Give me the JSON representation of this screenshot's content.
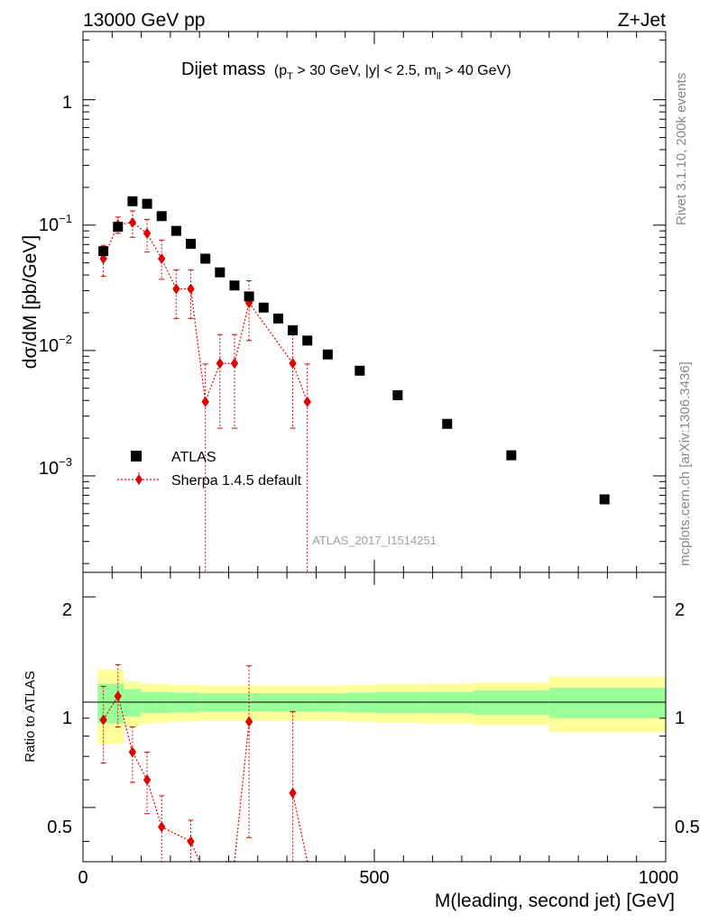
{
  "header": {
    "left_label": "13000 GeV pp",
    "right_label": "Z+Jet"
  },
  "side_labels": {
    "rivet": "Rivet 3.1.10,  200k events",
    "source": "mcplots.cern.ch [arXiv:1306.3436]"
  },
  "title": {
    "main": "Dijet mass",
    "cut_prefix": "(p",
    "cut_pt_sub": "T",
    "cut_mid": " > 30 GeV, |y| < 2.5, m",
    "cut_ll_sub": "ll",
    "cut_suffix": " > 40 GeV)"
  },
  "analysis_id": "ATLAS_2017_I1514251",
  "legend": {
    "data_label": "ATLAS",
    "mc_label": "Sherpa 1.4.5 default"
  },
  "axes": {
    "ylabel_main": "dσ/dM [pb/GeV]",
    "ylabel_ratio": "Ratio to ATLAS",
    "xlabel": "M(leading, second jet) [GeV]",
    "x_ticks": [
      "0",
      "500",
      "1000"
    ],
    "main_y_ticks": [
      {
        "mant": "10",
        "exp": "−3"
      },
      {
        "mant": "10",
        "exp": "−2"
      },
      {
        "mant": "10",
        "exp": "−1"
      },
      {
        "mant": "1",
        "exp": ""
      }
    ],
    "ratio_y_ticks": [
      "0.5",
      "1",
      "2"
    ]
  },
  "colors": {
    "data": "#000000",
    "mc": "#e00000",
    "band_inner": "#99ff99",
    "band_outer": "#ffff99"
  },
  "chart_data": [
    {
      "type": "scatter",
      "panel": "main",
      "title": "Dijet mass",
      "xlabel": "M(leading, second jet) [GeV]",
      "ylabel": "dσ/dM [pb/GeV]",
      "xlim": [
        0,
        1000
      ],
      "ylim": [
        0.00017,
        3.5
      ],
      "yscale": "log",
      "series": [
        {
          "name": "ATLAS",
          "x": [
            35,
            60,
            85,
            110,
            135,
            160,
            185,
            210,
            235,
            260,
            285,
            310,
            335,
            360,
            385,
            420,
            475,
            540,
            625,
            735,
            895
          ],
          "y": [
            0.062,
            0.097,
            0.155,
            0.148,
            0.118,
            0.09,
            0.071,
            0.054,
            0.042,
            0.033,
            0.027,
            0.022,
            0.018,
            0.0145,
            0.012,
            0.0093,
            0.0069,
            0.0044,
            0.0026,
            0.00146,
            0.00065
          ]
        },
        {
          "name": "Sherpa 1.4.5 default",
          "x": [
            35,
            60,
            85,
            110,
            135,
            160,
            185,
            210,
            235,
            260,
            285,
            360,
            385
          ],
          "y": [
            0.054,
            0.101,
            0.105,
            0.086,
            0.054,
            0.031,
            0.031,
            0.0039,
            0.0079,
            0.0079,
            0.024,
            0.0079,
            0.0039
          ],
          "yerr_low": [
            0.015,
            0.015,
            0.025,
            0.025,
            0.017,
            0.013,
            0.013,
            0.0039,
            0.0055,
            0.0055,
            0.012,
            0.0055,
            0.0039
          ],
          "yerr_high": [
            0.015,
            0.015,
            0.025,
            0.025,
            0.022,
            0.013,
            0.013,
            0.0039,
            0.0055,
            0.0055,
            0.012,
            0.0055,
            0.0039
          ]
        }
      ]
    },
    {
      "type": "line",
      "panel": "ratio",
      "ylabel": "Ratio to ATLAS",
      "xlim": [
        0,
        1000
      ],
      "ylim": [
        0.35,
        2.35
      ],
      "yscale": "log",
      "reference": 1,
      "band_edges": [
        25,
        70,
        100,
        125,
        150,
        175,
        200,
        250,
        300,
        350,
        400,
        450,
        500,
        580,
        670,
        800,
        1000
      ],
      "band_inner": [
        [
          0.87,
          1.13
        ],
        [
          0.91,
          1.09
        ],
        [
          0.93,
          1.07
        ],
        [
          0.93,
          1.07
        ],
        [
          0.935,
          1.065
        ],
        [
          0.935,
          1.065
        ],
        [
          0.94,
          1.06
        ],
        [
          0.94,
          1.06
        ],
        [
          0.94,
          1.06
        ],
        [
          0.94,
          1.06
        ],
        [
          0.94,
          1.06
        ],
        [
          0.935,
          1.065
        ],
        [
          0.93,
          1.07
        ],
        [
          0.93,
          1.07
        ],
        [
          0.92,
          1.08
        ],
        [
          0.9,
          1.1
        ]
      ],
      "band_outer": [
        [
          0.76,
          1.24
        ],
        [
          0.85,
          1.15
        ],
        [
          0.87,
          1.13
        ],
        [
          0.875,
          1.125
        ],
        [
          0.88,
          1.12
        ],
        [
          0.88,
          1.12
        ],
        [
          0.885,
          1.115
        ],
        [
          0.885,
          1.115
        ],
        [
          0.885,
          1.115
        ],
        [
          0.885,
          1.115
        ],
        [
          0.885,
          1.115
        ],
        [
          0.88,
          1.12
        ],
        [
          0.875,
          1.125
        ],
        [
          0.87,
          1.13
        ],
        [
          0.86,
          1.14
        ],
        [
          0.82,
          1.18
        ]
      ],
      "series": [
        {
          "name": "Sherpa 1.4.5 default",
          "x": [
            35,
            60,
            85,
            110,
            135,
            185,
            285,
            360
          ],
          "y": [
            0.89,
            1.04,
            0.72,
            0.6,
            0.44,
            0.4,
            0.88,
            0.55
          ],
          "yerr_low": [
            0.22,
            0.19,
            0.13,
            0.12,
            0.1,
            0.06,
            0.47,
            0.4
          ],
          "yerr_high": [
            0.22,
            0.24,
            0.13,
            0.12,
            0.1,
            0.06,
            0.39,
            0.39
          ]
        }
      ],
      "offscale_segments": [
        [
          185,
          0.4,
          200,
          0.25
        ],
        [
          245,
          0.25,
          260,
          0.1
        ],
        [
          260,
          0.2,
          285,
          0.88
        ],
        [
          360,
          0.55,
          385,
          0.3
        ]
      ]
    }
  ]
}
